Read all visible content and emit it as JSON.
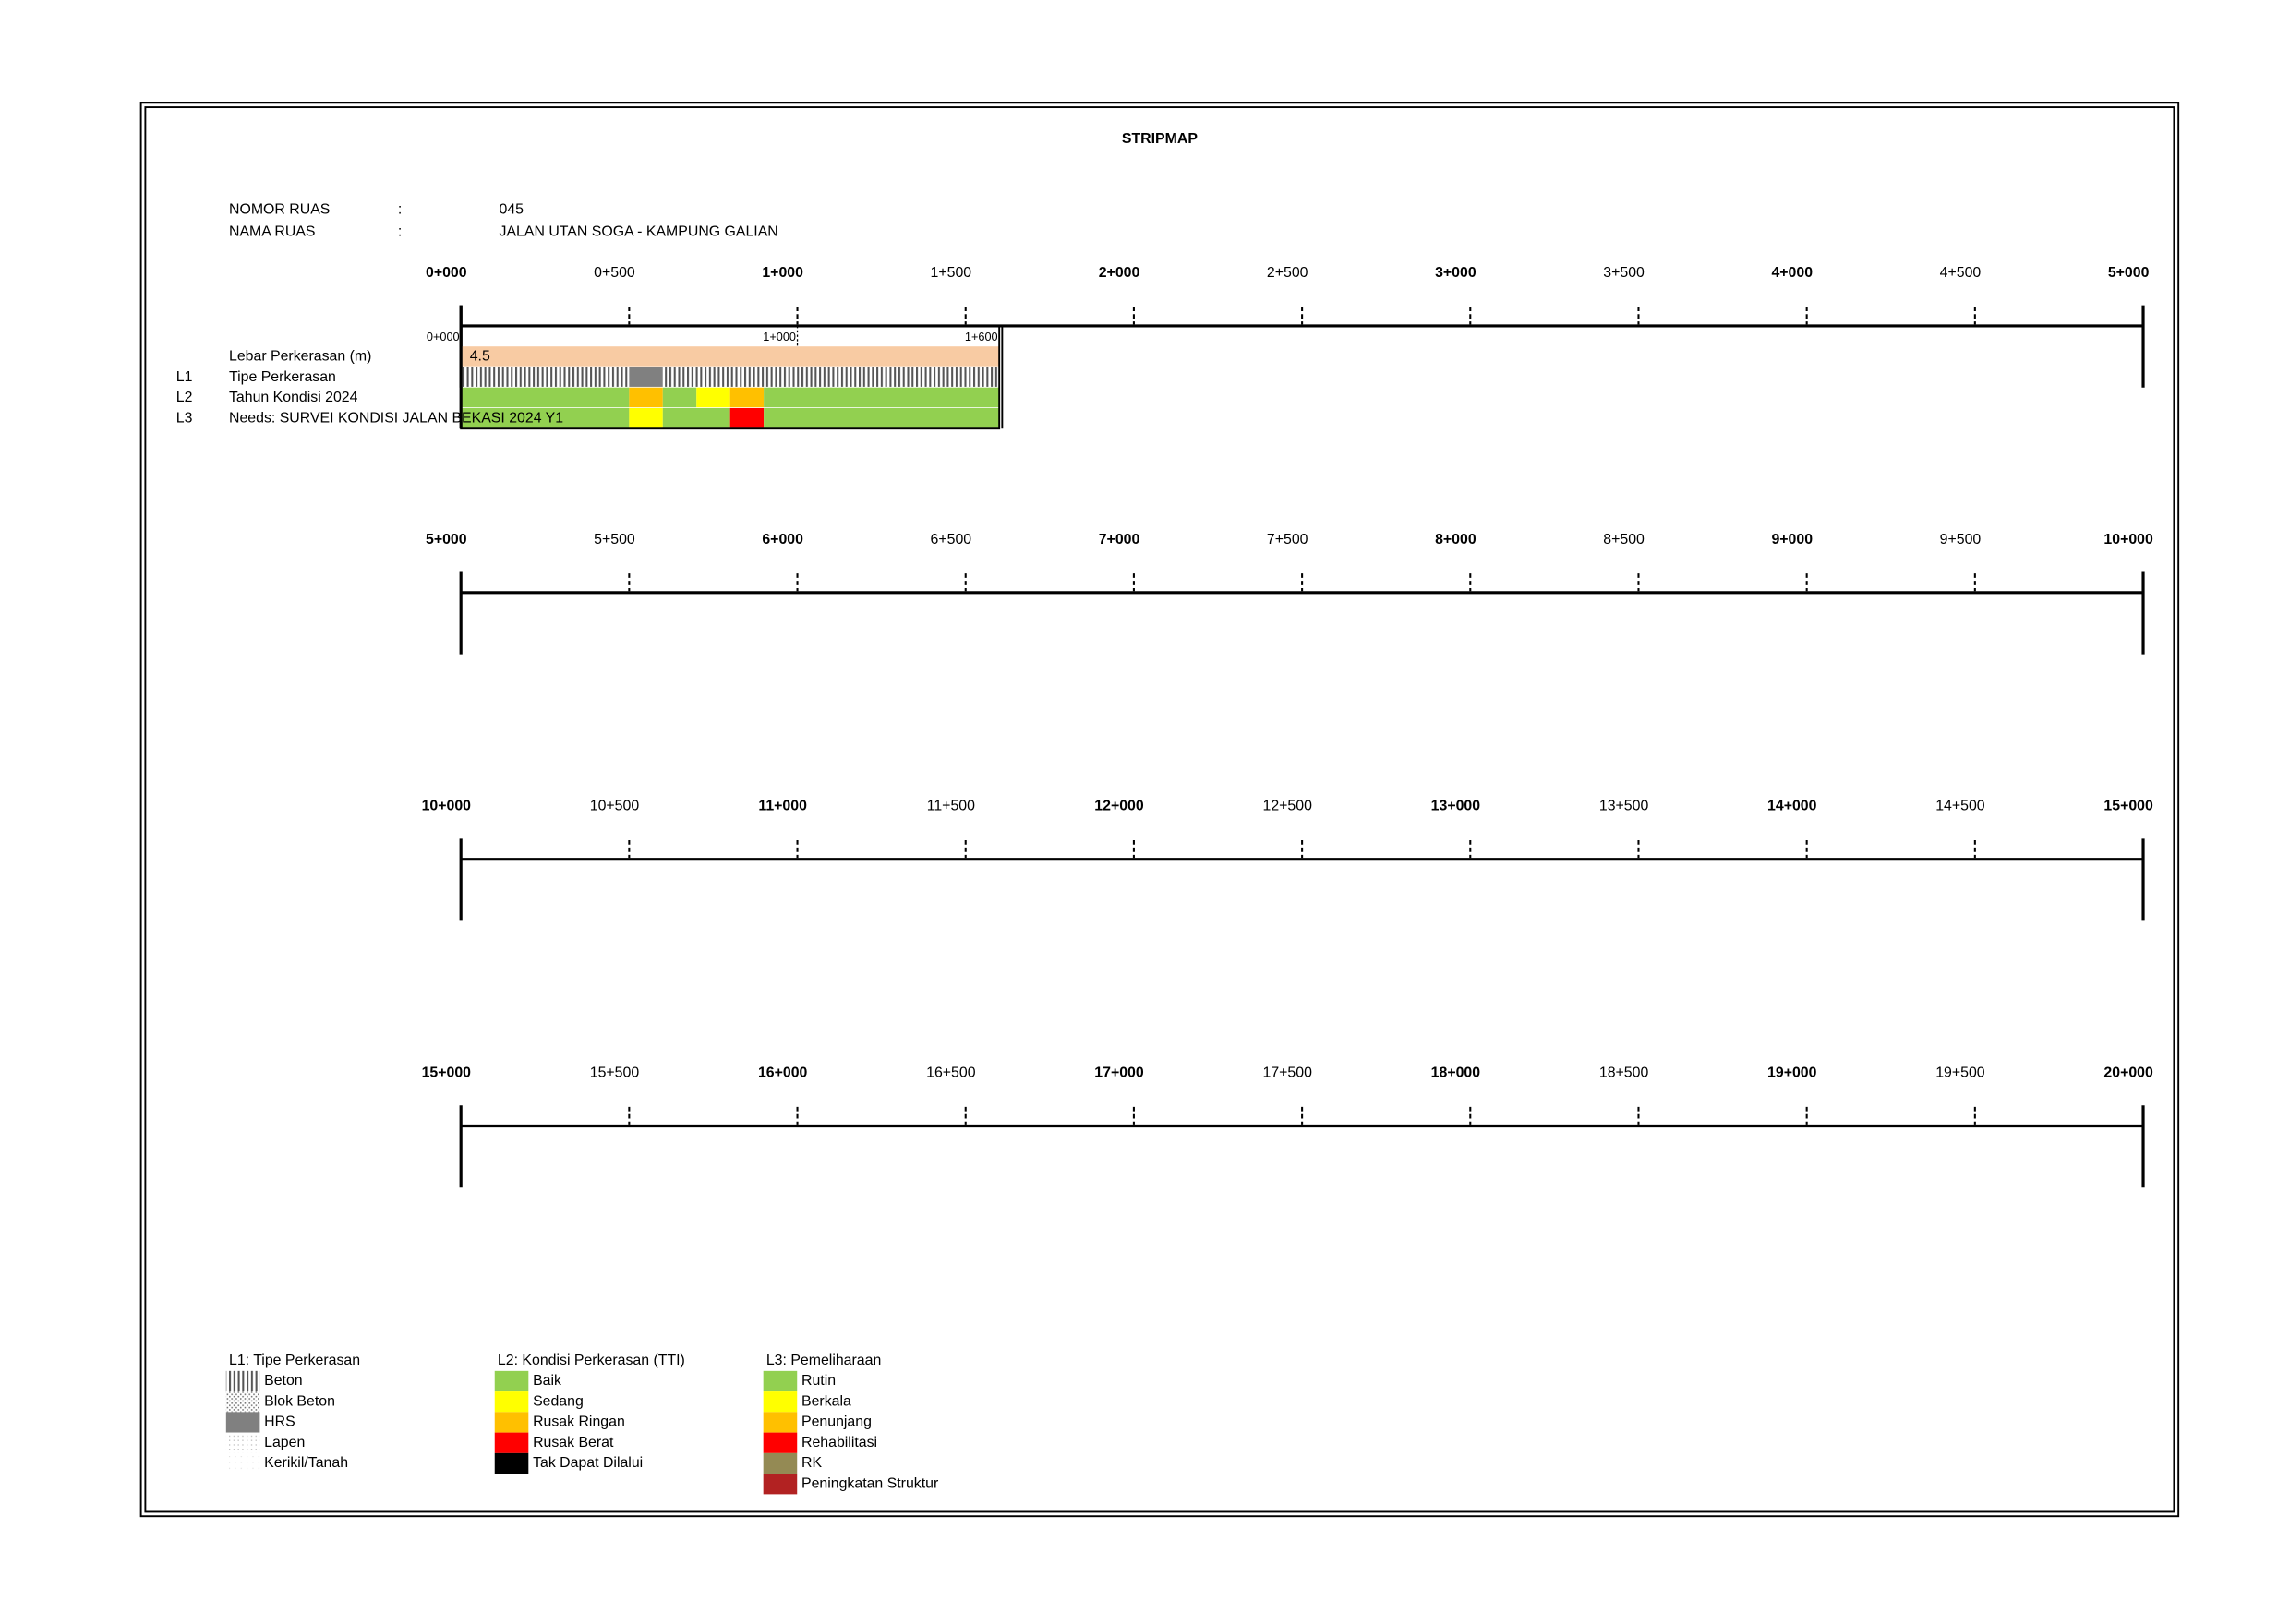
{
  "title": "STRIPMAP",
  "header": [
    {
      "label": "NOMOR RUAS",
      "sep": ":",
      "value": "045"
    },
    {
      "label": "NAMA RUAS",
      "sep": ":",
      "value": "JALAN UTAN SOGA - KAMPUNG GALIAN"
    }
  ],
  "scales": [
    [
      "0+000",
      "0+500",
      "1+000",
      "1+500",
      "2+000",
      "2+500",
      "3+000",
      "3+500",
      "4+000",
      "4+500",
      "5+000"
    ],
    [
      "5+000",
      "5+500",
      "6+000",
      "6+500",
      "7+000",
      "7+500",
      "8+000",
      "8+500",
      "9+000",
      "9+500",
      "10+000"
    ],
    [
      "10+000",
      "10+500",
      "11+000",
      "11+500",
      "12+000",
      "12+500",
      "13+000",
      "13+500",
      "14+000",
      "14+500",
      "15+000"
    ],
    [
      "15+000",
      "15+500",
      "16+000",
      "16+500",
      "17+000",
      "17+500",
      "18+000",
      "18+500",
      "19+000",
      "19+500",
      "20+000"
    ]
  ],
  "strip": {
    "end_km": 1.6,
    "km_labels": [
      {
        "km": 0,
        "label": "0+000"
      },
      {
        "km": 1,
        "label": "1+000"
      },
      {
        "km": 1.6,
        "label": "1+600"
      }
    ],
    "width_label": "Lebar Perkerasan (m)",
    "width_value": 4.5,
    "width_color": "#f8cba3"
  },
  "layers": [
    {
      "code": "L1",
      "name": "Tipe Perkerasan",
      "legend": 0,
      "segments": [
        {
          "from": 0,
          "to": 0.5,
          "item": 0
        },
        {
          "from": 0.5,
          "to": 0.6,
          "item": 2
        },
        {
          "from": 0.6,
          "to": 1.6,
          "item": 0
        }
      ]
    },
    {
      "code": "L2",
      "name": "Tahun Kondisi 2024",
      "legend": 1,
      "segments": [
        {
          "from": 0,
          "to": 0.5,
          "item": 0
        },
        {
          "from": 0.5,
          "to": 0.6,
          "item": 2
        },
        {
          "from": 0.6,
          "to": 0.7,
          "item": 0
        },
        {
          "from": 0.7,
          "to": 0.8,
          "item": 1
        },
        {
          "from": 0.8,
          "to": 0.9,
          "item": 2
        },
        {
          "from": 0.9,
          "to": 1.6,
          "item": 0
        }
      ]
    },
    {
      "code": "L3",
      "name": "Needs: SURVEI KONDISI JALAN BEKASI 2024 Y1",
      "legend": 2,
      "segments": [
        {
          "from": 0,
          "to": 0.5,
          "item": 0
        },
        {
          "from": 0.5,
          "to": 0.6,
          "item": 1
        },
        {
          "from": 0.6,
          "to": 0.8,
          "item": 0
        },
        {
          "from": 0.8,
          "to": 0.9,
          "item": 3
        },
        {
          "from": 0.9,
          "to": 1.6,
          "item": 0
        }
      ]
    }
  ],
  "legend": [
    {
      "title": "L1: Tipe Perkerasan",
      "items": [
        {
          "label": "Beton",
          "fill": "stripes"
        },
        {
          "label": "Blok Beton",
          "fill": "checker"
        },
        {
          "label": "HRS",
          "fill": "#808080"
        },
        {
          "label": "Lapen",
          "fill": "dots"
        },
        {
          "label": "Kerikil/Tanah",
          "fill": "faint"
        }
      ]
    },
    {
      "title": "L2: Kondisi Perkerasan (TTI)",
      "items": [
        {
          "label": "Baik",
          "fill": "#92d050"
        },
        {
          "label": "Sedang",
          "fill": "#ffff00"
        },
        {
          "label": "Rusak Ringan",
          "fill": "#ffc000"
        },
        {
          "label": "Rusak Berat",
          "fill": "#ff0000"
        },
        {
          "label": "Tak Dapat Dilalui",
          "fill": "#000000"
        }
      ]
    },
    {
      "title": "L3: Pemeliharaan",
      "items": [
        {
          "label": "Rutin",
          "fill": "#92d050"
        },
        {
          "label": "Berkala",
          "fill": "#ffff00"
        },
        {
          "label": "Penunjang",
          "fill": "#ffc000"
        },
        {
          "label": "Rehabilitasi",
          "fill": "#ff0000"
        },
        {
          "label": "RK",
          "fill": "#948a54"
        },
        {
          "label": "Peningkatan Struktur",
          "fill": "#b22222"
        }
      ]
    }
  ]
}
